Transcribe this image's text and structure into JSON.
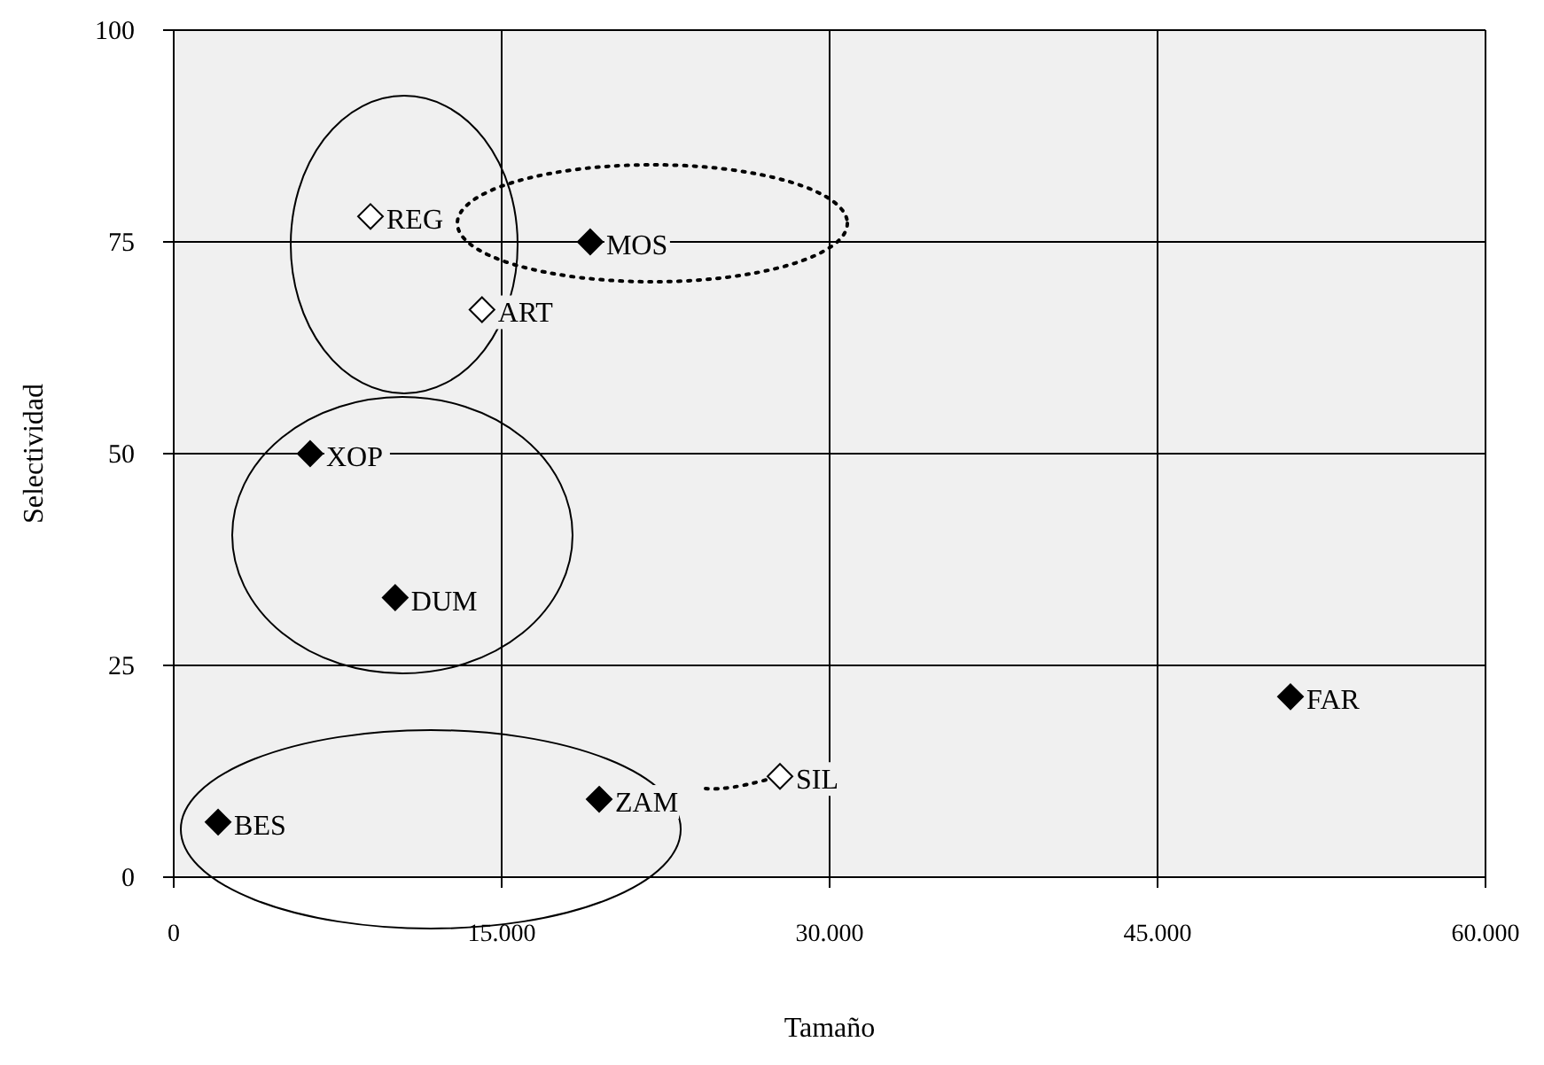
{
  "chart_data": {
    "type": "scatter",
    "xlabel": "Tamaño",
    "ylabel": "Selectividad",
    "marker": "diamond",
    "grid": true,
    "xlim": [
      0,
      60000
    ],
    "xticks": [
      0,
      {
        "value": 15000,
        "label": "15.000"
      },
      {
        "value": 30000,
        "label": "30.000"
      },
      {
        "value": 45000,
        "label": "45.000"
      },
      {
        "value": 60000,
        "label": "60.000"
      }
    ],
    "ylim": [
      0,
      100
    ],
    "yticks": [
      0,
      25,
      50,
      75,
      100
    ],
    "series": [
      {
        "color": "#000000",
        "x": [
          19050,
          6240,
          10130,
          51080,
          19460,
          2030
        ],
        "values": [
          75,
          50,
          33,
          21.3,
          9.2,
          6.5
        ]
      },
      {
        "color": "#ffffff",
        "x": [
          9000,
          14100,
          27730
        ],
        "values": [
          78,
          67,
          11.9
        ]
      }
    ],
    "annotations": [
      {
        "text": "REG",
        "x": 9000,
        "y": 78
      },
      {
        "text": "MOS",
        "x": 19050,
        "y": 75
      },
      {
        "text": "ART",
        "x": 14100,
        "y": 67
      },
      {
        "text": "XOP",
        "x": 6240,
        "y": 50
      },
      {
        "text": "DUM",
        "x": 10130,
        "y": 33
      },
      {
        "text": "FAR",
        "x": 51080,
        "y": 21.3
      },
      {
        "text": "SIL",
        "x": 27730,
        "y": 11.9
      },
      {
        "text": "ZAM",
        "x": 19460,
        "y": 9.2
      },
      {
        "text": "BES",
        "x": 2030,
        "y": 6.5
      }
    ]
  }
}
